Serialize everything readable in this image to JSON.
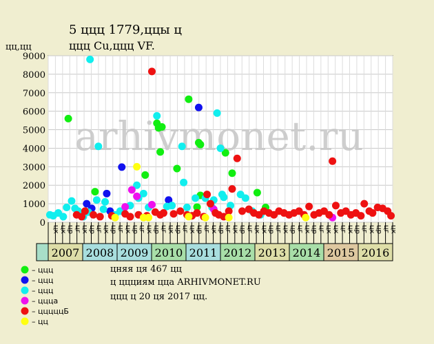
{
  "header": {
    "title_line1": "5 ццц 1779,ццы ц",
    "title_line2": "ццц Cu,ццц VF.",
    "y_unit": "цц,цц"
  },
  "footer": {
    "line1": "цняя ця 467 цц",
    "line2": "ц ццциям цца ARHIVMONET.RU",
    "line3": "ццц ц 20 ця 2017 цц."
  },
  "watermark": "arhivmonet.ru",
  "legend": [
    {
      "label": "– ццц",
      "color": "#11EE11"
    },
    {
      "label": "– ццц",
      "color": "#1111EE"
    },
    {
      "label": "– ццц",
      "color": "#11EEEE"
    },
    {
      "label": "– цццa",
      "color": "#EE11EE"
    },
    {
      "label": "– цццццБ",
      "color": "#EE1111"
    },
    {
      "label": "– цц",
      "color": "#FFFF11"
    }
  ],
  "chart_data": {
    "type": "scatter",
    "ylim": [
      0,
      9000
    ],
    "yticks": [
      0,
      1000,
      2000,
      3000,
      4000,
      5000,
      6000,
      7000,
      8000,
      9000
    ],
    "grid": true,
    "x_range": [
      2006.6,
      2016.9
    ],
    "month_labels": [
      "цк",
      "цк",
      "цр",
      "цг",
      "цк",
      "цр",
      "цг",
      "цк",
      "цр",
      "цг",
      "цк",
      "цр",
      "цг",
      "цк",
      "цр",
      "цг",
      "цк",
      "цр",
      "цг",
      "цк",
      "цр",
      "цг",
      "цк",
      "цр",
      "цг",
      "цк",
      "цр",
      "цг",
      "цк",
      "цк",
      "цр",
      "цг",
      "цк",
      "цр",
      "цг",
      "цк",
      "цр",
      "цг",
      "цк",
      "цк",
      "цг",
      "цк",
      "цр",
      "цг",
      "цк",
      "цр",
      "цг",
      "цк"
    ],
    "years": [
      {
        "label": "2007",
        "color": "#DEDEA8"
      },
      {
        "label": "2008",
        "color": "#A8DEDE"
      },
      {
        "label": "2009",
        "color": "#A8DEDE"
      },
      {
        "label": "2010",
        "color": "#A8DEA8"
      },
      {
        "label": "2011",
        "color": "#A8DEDE"
      },
      {
        "label": "2012",
        "color": "#A8DEA8"
      },
      {
        "label": "2013",
        "color": "#DEDEA8"
      },
      {
        "label": "2014",
        "color": "#A8DEA8"
      },
      {
        "label": "2015",
        "color": "#DEC8A0"
      },
      {
        "label": "2016",
        "color": "#DEDEA8"
      }
    ],
    "series": [
      {
        "color": "#11EE11",
        "points": [
          [
            2007.2,
            5600
          ],
          [
            2008.0,
            1650
          ],
          [
            2009.5,
            2550
          ],
          [
            2009.85,
            5350
          ],
          [
            2009.9,
            5100
          ],
          [
            2010.0,
            5150
          ],
          [
            2009.95,
            3800
          ],
          [
            2010.45,
            2900
          ],
          [
            2010.8,
            6650
          ],
          [
            2011.1,
            4300
          ],
          [
            2011.15,
            4200
          ],
          [
            2011.05,
            820
          ],
          [
            2011.15,
            1450
          ],
          [
            2011.9,
            3750
          ],
          [
            2012.1,
            2650
          ],
          [
            2012.85,
            1600
          ],
          [
            2013.1,
            800
          ]
        ]
      },
      {
        "color": "#1111EE",
        "points": [
          [
            2007.75,
            1000
          ],
          [
            2007.9,
            750
          ],
          [
            2008.35,
            1550
          ],
          [
            2008.45,
            600
          ],
          [
            2008.8,
            2980
          ],
          [
            2010.2,
            1200
          ],
          [
            2011.1,
            6200
          ]
        ]
      },
      {
        "color": "#11EEEE",
        "points": [
          [
            2006.65,
            400
          ],
          [
            2006.75,
            350
          ],
          [
            2006.9,
            500
          ],
          [
            2007.05,
            300
          ],
          [
            2007.15,
            800
          ],
          [
            2007.3,
            1150
          ],
          [
            2007.4,
            750
          ],
          [
            2007.5,
            600
          ],
          [
            2007.65,
            300
          ],
          [
            2007.8,
            550
          ],
          [
            2007.85,
            8800
          ],
          [
            2008.05,
            1200
          ],
          [
            2008.1,
            4100
          ],
          [
            2008.25,
            700
          ],
          [
            2008.3,
            1100
          ],
          [
            2008.6,
            400
          ],
          [
            2008.75,
            600
          ],
          [
            2009.05,
            900
          ],
          [
            2009.25,
            2000
          ],
          [
            2009.3,
            1300
          ],
          [
            2009.45,
            1550
          ],
          [
            2009.6,
            800
          ],
          [
            2009.85,
            5750
          ],
          [
            2010.15,
            850
          ],
          [
            2010.3,
            900
          ],
          [
            2010.6,
            4100
          ],
          [
            2010.65,
            2150
          ],
          [
            2010.75,
            800
          ],
          [
            2011.0,
            1300
          ],
          [
            2011.3,
            1300
          ],
          [
            2011.5,
            800
          ],
          [
            2011.65,
            5900
          ],
          [
            2011.75,
            4000
          ],
          [
            2011.8,
            1500
          ],
          [
            2011.85,
            1350
          ],
          [
            2011.55,
            1200
          ],
          [
            2012.05,
            900
          ],
          [
            2012.35,
            1500
          ],
          [
            2012.5,
            1300
          ],
          [
            2012.7,
            600
          ],
          [
            2012.95,
            400
          ]
        ]
      },
      {
        "color": "#EE11EE",
        "points": [
          [
            2008.9,
            830
          ],
          [
            2009.1,
            1750
          ],
          [
            2009.25,
            1400
          ],
          [
            2009.7,
            950
          ],
          [
            2011.55,
            700
          ],
          [
            2015.1,
            250
          ]
        ]
      },
      {
        "color": "#EE1111",
        "points": [
          [
            2007.45,
            400
          ],
          [
            2007.6,
            300
          ],
          [
            2007.7,
            600
          ],
          [
            2007.95,
            400
          ],
          [
            2008.15,
            300
          ],
          [
            2008.5,
            350
          ],
          [
            2008.9,
            450
          ],
          [
            2009.05,
            300
          ],
          [
            2009.3,
            400
          ],
          [
            2009.55,
            350
          ],
          [
            2009.7,
            8150
          ],
          [
            2009.8,
            550
          ],
          [
            2009.95,
            400
          ],
          [
            2010.05,
            500
          ],
          [
            2010.35,
            450
          ],
          [
            2010.55,
            600
          ],
          [
            2010.75,
            400
          ],
          [
            2010.9,
            350
          ],
          [
            2011.05,
            500
          ],
          [
            2011.25,
            300
          ],
          [
            2011.35,
            1500
          ],
          [
            2011.45,
            1000
          ],
          [
            2011.6,
            500
          ],
          [
            2011.7,
            400
          ],
          [
            2011.85,
            300
          ],
          [
            2012.0,
            600
          ],
          [
            2012.1,
            1800
          ],
          [
            2012.25,
            3450
          ],
          [
            2012.4,
            600
          ],
          [
            2012.6,
            700
          ],
          [
            2012.75,
            500
          ],
          [
            2012.9,
            400
          ],
          [
            2013.05,
            600
          ],
          [
            2013.2,
            500
          ],
          [
            2013.35,
            400
          ],
          [
            2013.5,
            600
          ],
          [
            2013.65,
            500
          ],
          [
            2013.8,
            400
          ],
          [
            2013.95,
            500
          ],
          [
            2014.1,
            600
          ],
          [
            2014.25,
            400
          ],
          [
            2014.4,
            850
          ],
          [
            2014.55,
            400
          ],
          [
            2014.7,
            500
          ],
          [
            2014.85,
            600
          ],
          [
            2015.0,
            400
          ],
          [
            2015.1,
            3300
          ],
          [
            2015.2,
            900
          ],
          [
            2015.35,
            500
          ],
          [
            2015.5,
            600
          ],
          [
            2015.65,
            400
          ],
          [
            2015.8,
            500
          ],
          [
            2015.95,
            350
          ],
          [
            2016.05,
            1000
          ],
          [
            2016.2,
            600
          ],
          [
            2016.3,
            500
          ],
          [
            2016.45,
            800
          ],
          [
            2016.6,
            750
          ],
          [
            2016.75,
            600
          ],
          [
            2016.85,
            350
          ]
        ]
      },
      {
        "color": "#FFFF11",
        "points": [
          [
            2008.6,
            250
          ],
          [
            2009.25,
            3000
          ],
          [
            2009.45,
            250
          ],
          [
            2009.6,
            250
          ],
          [
            2010.8,
            300
          ],
          [
            2011.3,
            250
          ],
          [
            2012.0,
            250
          ],
          [
            2014.3,
            250
          ]
        ]
      }
    ]
  }
}
